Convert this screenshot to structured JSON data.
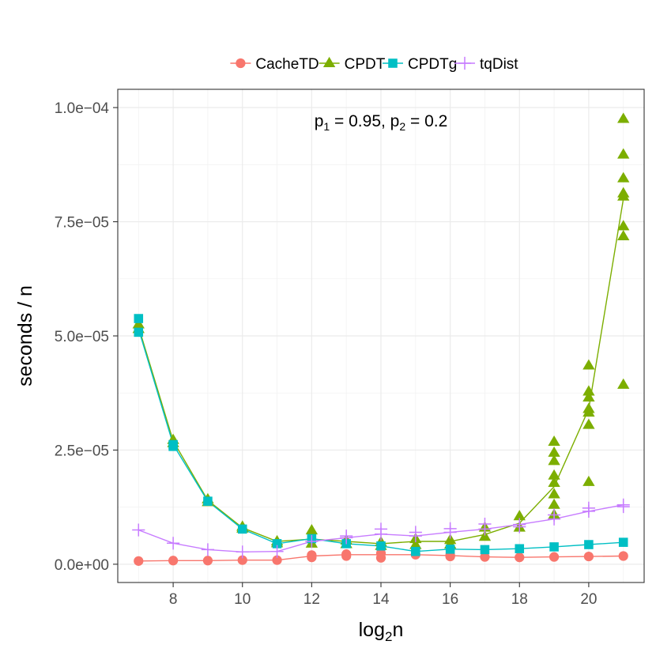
{
  "chart_data": {
    "type": "line",
    "title": "",
    "annotation": {
      "p1_base": "p",
      "p1_sub": "1",
      "p1_eq": " = 0.95, ",
      "p2_base": "p",
      "p2_sub": "2",
      "p2_eq": " = 0.2"
    },
    "xlabel": {
      "base": "log",
      "sub": "2",
      "rest": "n"
    },
    "ylabel": "seconds / n",
    "xlim": [
      6.4,
      21.6
    ],
    "ylim": [
      -4e-06,
      0.000104
    ],
    "x_ticks": [
      8,
      10,
      12,
      14,
      16,
      18,
      20
    ],
    "x_tick_labels": [
      "8",
      "10",
      "12",
      "14",
      "16",
      "18",
      "20"
    ],
    "y_ticks": [
      0,
      2.5e-05,
      5e-05,
      7.5e-05,
      0.0001
    ],
    "y_tick_labels": [
      "0.0e+00",
      "2.5e−05",
      "5.0e−05",
      "7.5e−05",
      "1.0e−04"
    ],
    "legend_position": "top",
    "series": [
      {
        "name": "CacheTD",
        "color": "#F8766D",
        "marker": "circle",
        "x": [
          7,
          8,
          9,
          10,
          11,
          12,
          13,
          14,
          15,
          16,
          17,
          18,
          19,
          20,
          21
        ],
        "values": [
          7e-07,
          8e-07,
          8e-07,
          9e-07,
          9e-07,
          1.8e-06,
          2.1e-06,
          2.1e-06,
          2.1e-06,
          1.9e-06,
          1.6e-06,
          1.5e-06,
          1.6e-06,
          1.7e-06,
          1.8e-06
        ],
        "points": [
          [
            7,
            7e-07
          ],
          [
            8,
            8e-07
          ],
          [
            9,
            8e-07
          ],
          [
            10,
            9e-07
          ],
          [
            11,
            9e-07
          ],
          [
            12,
            1.5e-06
          ],
          [
            12,
            2e-06
          ],
          [
            13,
            1.8e-06
          ],
          [
            13,
            2.2e-06
          ],
          [
            14,
            1.4e-06
          ],
          [
            14,
            2.4e-06
          ],
          [
            15,
            2.1e-06
          ],
          [
            16,
            1.7e-06
          ],
          [
            16,
            2e-06
          ],
          [
            17,
            1.6e-06
          ],
          [
            18,
            1.5e-06
          ],
          [
            19,
            1.6e-06
          ],
          [
            20,
            1.7e-06
          ],
          [
            21,
            1.8e-06
          ]
        ]
      },
      {
        "name": "CPDT",
        "color": "#7CAE00",
        "marker": "triangle",
        "x": [
          7,
          8,
          9,
          10,
          11,
          12,
          13,
          14,
          15,
          16,
          17,
          18,
          19,
          20,
          21
        ],
        "values": [
          5.2e-05,
          2.7e-05,
          1.4e-05,
          8e-06,
          5e-06,
          5.5e-06,
          5e-06,
          4.5e-06,
          5e-06,
          5e-06,
          6.5e-06,
          9e-06,
          1.7e-05,
          3.4e-05,
          8e-05
        ],
        "points": [
          [
            7,
            5.25e-05
          ],
          [
            7,
            5.15e-05
          ],
          [
            8,
            2.72e-05
          ],
          [
            8,
            2.65e-05
          ],
          [
            9,
            1.42e-05
          ],
          [
            9,
            1.36e-05
          ],
          [
            10,
            8.2e-06
          ],
          [
            10,
            7.8e-06
          ],
          [
            11,
            5e-06
          ],
          [
            11,
            4.6e-06
          ],
          [
            12,
            7.4e-06
          ],
          [
            12,
            4.5e-06
          ],
          [
            13,
            5.2e-06
          ],
          [
            13,
            4.4e-06
          ],
          [
            14,
            4.8e-06
          ],
          [
            14,
            4e-06
          ],
          [
            15,
            5.5e-06
          ],
          [
            15,
            4.2e-06
          ],
          [
            16,
            5.3e-06
          ],
          [
            16,
            4.3e-06
          ],
          [
            17,
            8e-06
          ],
          [
            17,
            6e-06
          ],
          [
            18,
            1.05e-05
          ],
          [
            18,
            8e-06
          ],
          [
            19,
            2.68e-05
          ],
          [
            19,
            2.44e-05
          ],
          [
            19,
            2.26e-05
          ],
          [
            19,
            1.94e-05
          ],
          [
            19,
            1.78e-05
          ],
          [
            19,
            1.53e-05
          ],
          [
            19,
            1.3e-05
          ],
          [
            19,
            1.08e-05
          ],
          [
            20,
            4.35e-05
          ],
          [
            20,
            3.78e-05
          ],
          [
            20,
            3.65e-05
          ],
          [
            20,
            3.4e-05
          ],
          [
            20,
            3.32e-05
          ],
          [
            20,
            3.05e-05
          ],
          [
            20,
            1.8e-05
          ],
          [
            21,
            9.75e-05
          ],
          [
            21,
            8.97e-05
          ],
          [
            21,
            8.45e-05
          ],
          [
            21,
            8.12e-05
          ],
          [
            21,
            8.05e-05
          ],
          [
            21,
            7.4e-05
          ],
          [
            21,
            7.18e-05
          ],
          [
            21,
            3.93e-05
          ]
        ]
      },
      {
        "name": "CPDTg",
        "color": "#00BFC4",
        "marker": "square",
        "x": [
          7,
          8,
          9,
          10,
          11,
          12,
          13,
          14,
          15,
          16,
          17,
          18,
          19,
          20,
          21
        ],
        "values": [
          5.15e-05,
          2.62e-05,
          1.38e-05,
          7.7e-06,
          4.5e-06,
          5.6e-06,
          4.5e-06,
          4e-06,
          2.8e-06,
          3.3e-06,
          3.2e-06,
          3.4e-06,
          3.8e-06,
          4.3e-06,
          4.8e-06
        ],
        "points": [
          [
            7,
            5.38e-05
          ],
          [
            7,
            5.08e-05
          ],
          [
            8,
            2.62e-05
          ],
          [
            8,
            2.58e-05
          ],
          [
            9,
            1.38e-05
          ],
          [
            10,
            7.7e-06
          ],
          [
            11,
            4.5e-06
          ],
          [
            12,
            5.6e-06
          ],
          [
            13,
            4.5e-06
          ],
          [
            14,
            4e-06
          ],
          [
            15,
            2.8e-06
          ],
          [
            16,
            3.3e-06
          ],
          [
            17,
            3.2e-06
          ],
          [
            18,
            3.4e-06
          ],
          [
            19,
            3.8e-06
          ],
          [
            20,
            4.3e-06
          ],
          [
            21,
            4.8e-06
          ]
        ]
      },
      {
        "name": "tqDist",
        "color": "#C77CFF",
        "marker": "plus",
        "x": [
          7,
          8,
          9,
          10,
          11,
          12,
          13,
          14,
          15,
          16,
          17,
          18,
          19,
          20,
          21
        ],
        "values": [
          7.5e-06,
          4.6e-06,
          3.2e-06,
          2.7e-06,
          2.8e-06,
          5e-06,
          5.8e-06,
          6.6e-06,
          6.2e-06,
          7e-06,
          7.7e-06,
          8.7e-06,
          9.9e-06,
          1.16e-05,
          1.3e-05
        ],
        "points": [
          [
            7,
            7.5e-06
          ],
          [
            8,
            4.6e-06
          ],
          [
            9,
            3.2e-06
          ],
          [
            10,
            2.7e-06
          ],
          [
            11,
            2.8e-06
          ],
          [
            12,
            5e-06
          ],
          [
            13,
            5.8e-06
          ],
          [
            13,
            6.2e-06
          ],
          [
            14,
            6.6e-06
          ],
          [
            14,
            7.7e-06
          ],
          [
            15,
            6.2e-06
          ],
          [
            15,
            7e-06
          ],
          [
            16,
            7e-06
          ],
          [
            16,
            7.8e-06
          ],
          [
            17,
            7.7e-06
          ],
          [
            17,
            8.8e-06
          ],
          [
            18,
            8.7e-06
          ],
          [
            18,
            8.2e-06
          ],
          [
            19,
            9.9e-06
          ],
          [
            19,
            1.08e-05
          ],
          [
            20,
            1.16e-05
          ],
          [
            20,
            1.23e-05
          ],
          [
            21,
            1.3e-05
          ],
          [
            21,
            1.26e-05
          ]
        ]
      }
    ]
  }
}
